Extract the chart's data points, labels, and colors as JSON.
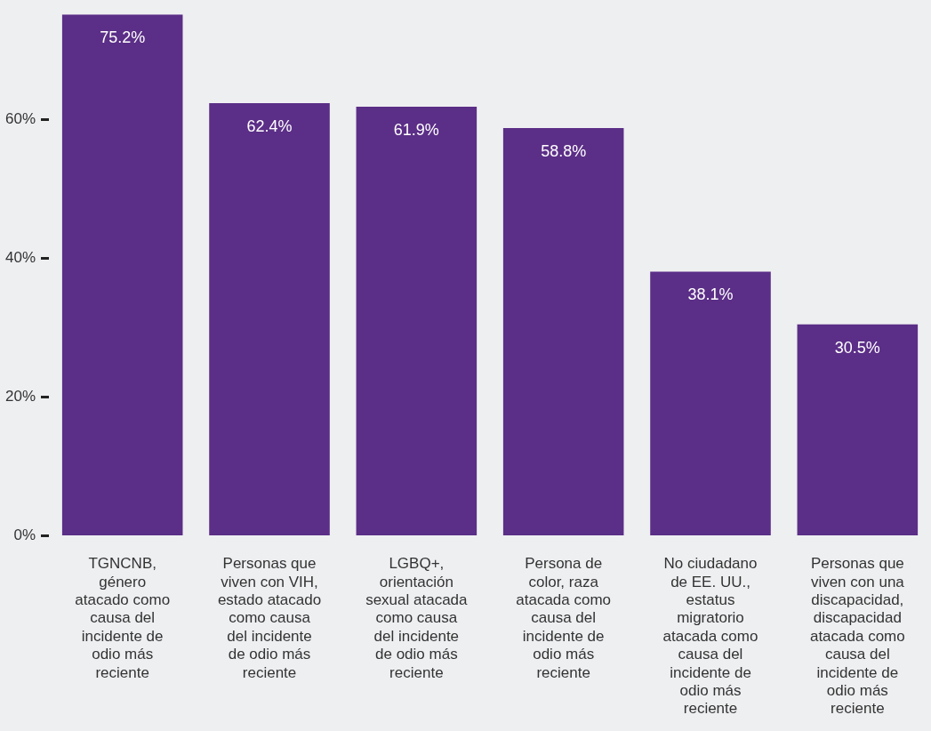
{
  "chart_data": {
    "type": "bar",
    "categories": [
      "TGNCNB, género atacado como causa del incidente de odio más reciente",
      "Personas que viven con VIH, estado atacado como causa del incidente de odio más reciente",
      "LGBQ+, orientación sexual atacada como causa del incidente de odio más reciente",
      "Persona de color, raza atacada como causa del incidente de odio más reciente",
      "No ciudadano de EE. UU., estatus migratorio atacada como causa del incidente de odio más reciente",
      "Personas que viven con una discapacidad, discapacidad atacada como causa del incidente de odio más reciente"
    ],
    "values": [
      75.2,
      62.4,
      61.9,
      58.8,
      38.1,
      30.5
    ],
    "value_labels": [
      "75.2%",
      "62.4%",
      "61.9%",
      "58.8%",
      "38.1%",
      "30.5%"
    ],
    "color": "#5b2e87",
    "ylim": [
      0,
      75.2
    ],
    "yticks": [
      {
        "value": 0,
        "label": "0%"
      },
      {
        "value": 20,
        "label": "20%"
      },
      {
        "value": 40,
        "label": "40%"
      },
      {
        "value": 60,
        "label": "60%"
      }
    ],
    "grid": false,
    "legend": false
  }
}
